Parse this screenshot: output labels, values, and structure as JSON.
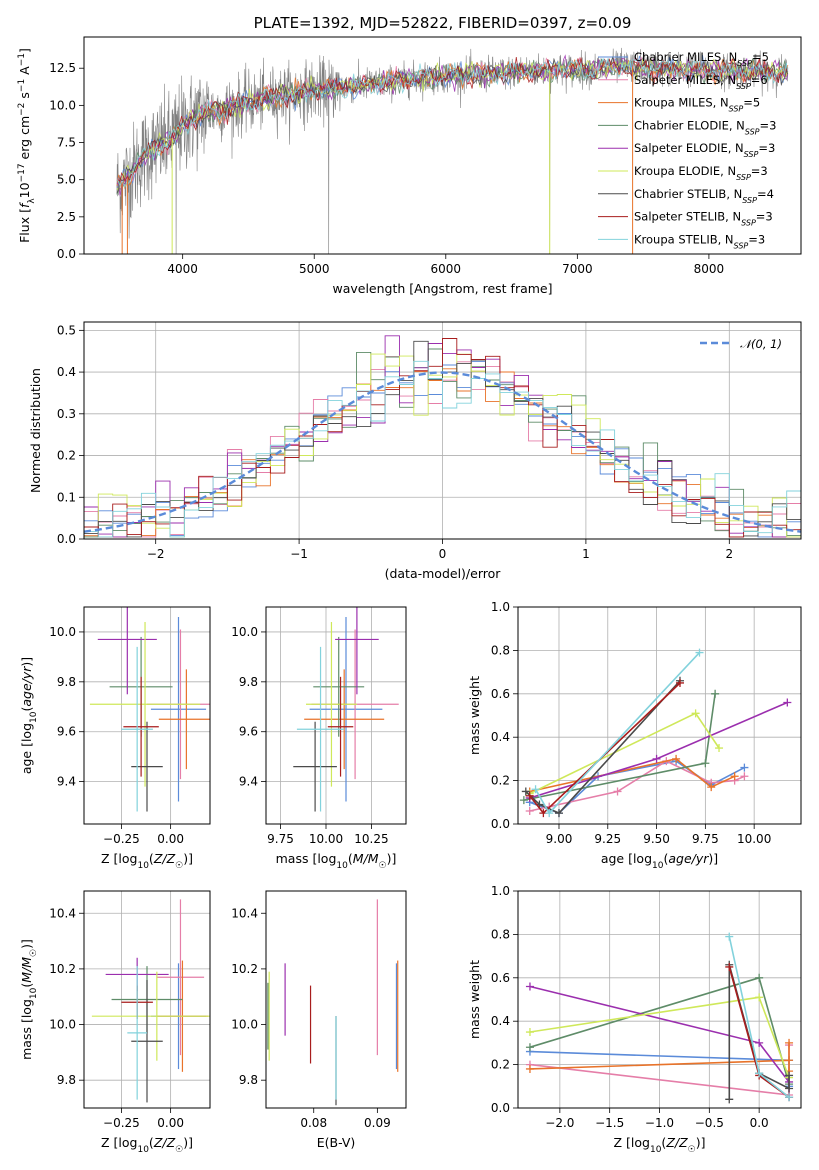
{
  "colors": {
    "Chabrier MILES": "#5b8bd9",
    "Salpeter MILES": "#e57ea8",
    "Kroupa MILES": "#e8732a",
    "Chabrier ELODIE": "#5e8c68",
    "Salpeter ELODIE": "#9b2fae",
    "Kroupa ELODIE": "#cfe85a",
    "Chabrier STELIB": "#4b4b4b",
    "Salpeter STELIB": "#a81d1d",
    "Kroupa STELIB": "#82d2dc"
  },
  "chart_data": [
    {
      "id": "spectrum",
      "type": "line",
      "title": "PLATE=1392, MJD=52822, FIBERID=0397, z=0.09",
      "xlabel": "wavelength [Angstrom, rest frame]",
      "ylabel": "Flux [f_λ10^-17 erg cm^-2 s^-1 A^-1]",
      "xlim": [
        3250,
        8700
      ],
      "ylim": [
        0,
        14.6
      ],
      "xticks": [
        4000,
        5000,
        6000,
        7000,
        8000
      ],
      "yticks": [
        0.0,
        2.5,
        5.0,
        7.5,
        10.0,
        12.5
      ],
      "grid": false,
      "legend_position": "upper-right",
      "data_color": "#808080",
      "continuum": {
        "x": [
          3500,
          3600,
          3700,
          3800,
          3900,
          4000,
          4100,
          4200,
          4300,
          4500,
          4700,
          5000,
          5300,
          5600,
          6000,
          6300,
          6600,
          7000,
          7400,
          7800,
          8200,
          8600
        ],
        "y": [
          4.5,
          5.3,
          6.6,
          7.2,
          7.6,
          8.6,
          9.2,
          9.6,
          9.7,
          10.2,
          10.6,
          11.0,
          11.3,
          11.6,
          12.0,
          12.1,
          12.3,
          12.4,
          12.6,
          12.4,
          12.3,
          12.2
        ]
      },
      "legend": [
        {
          "name": "Chabrier MILES",
          "nssp": 5
        },
        {
          "name": "Salpeter MILES",
          "nssp": 6
        },
        {
          "name": "Kroupa MILES",
          "nssp": 5
        },
        {
          "name": "Chabrier ELODIE",
          "nssp": 3
        },
        {
          "name": "Salpeter ELODIE",
          "nssp": 3
        },
        {
          "name": "Kroupa ELODIE",
          "nssp": 3
        },
        {
          "name": "Chabrier STELIB",
          "nssp": 4
        },
        {
          "name": "Salpeter STELIB",
          "nssp": 3
        },
        {
          "name": "Kroupa STELIB",
          "nssp": 3
        }
      ]
    },
    {
      "id": "residuals",
      "type": "step",
      "xlabel": "(data-model)/error",
      "ylabel": "Normed distribution",
      "xlim": [
        -2.5,
        2.5
      ],
      "ylim": [
        0,
        0.52
      ],
      "xticks": [
        -2,
        -1,
        0,
        1,
        2
      ],
      "yticks": [
        0.0,
        0.1,
        0.2,
        0.3,
        0.4,
        0.5
      ],
      "grid": true,
      "bin_width": 0.1,
      "gaussian_label": "N(0,1)",
      "gaussian_color": "#5b8bd9",
      "legend_position": "upper-right"
    },
    {
      "id": "age-vs-z",
      "type": "errorbar",
      "xlabel": "Z [log10(Z/Z☉)]",
      "ylabel": "age [log10(age/yr)]",
      "xlim": [
        -0.44,
        0.2
      ],
      "ylim": [
        9.23,
        10.1
      ],
      "xticks": [
        -0.25,
        0.0
      ],
      "xtick_labels": [
        "−0.25",
        "0.00"
      ],
      "yticks": [
        9.4,
        9.6,
        9.8,
        10.0
      ],
      "grid": true,
      "points": [
        {
          "series": "Chabrier MILES",
          "x": 0.04,
          "xerr": 0.14,
          "y": 9.69,
          "yerr": 0.37
        },
        {
          "series": "Salpeter MILES",
          "x": 0.05,
          "xerr": 0.17,
          "y": 9.71,
          "yerr": 0.3
        },
        {
          "series": "Kroupa MILES",
          "x": 0.08,
          "xerr": 0.14,
          "y": 9.65,
          "yerr": 0.2
        },
        {
          "series": "Chabrier ELODIE",
          "x": -0.15,
          "xerr": 0.16,
          "y": 9.78,
          "yerr": 0.2
        },
        {
          "series": "Salpeter ELODIE",
          "x": -0.22,
          "xerr": 0.15,
          "y": 9.97,
          "yerr": 0.22
        },
        {
          "series": "Kroupa ELODIE",
          "x": -0.13,
          "xerr": 0.28,
          "y": 9.71,
          "yerr": 0.33
        },
        {
          "series": "Chabrier STELIB",
          "x": -0.12,
          "xerr": 0.08,
          "y": 9.46,
          "yerr": 0.18
        },
        {
          "series": "Salpeter STELIB",
          "x": -0.15,
          "xerr": 0.09,
          "y": 9.62,
          "yerr": 0.2
        },
        {
          "series": "Kroupa STELIB",
          "x": -0.17,
          "xerr": 0.08,
          "y": 9.61,
          "yerr": 0.33
        }
      ]
    },
    {
      "id": "age-vs-mass",
      "type": "errorbar",
      "xlabel": "mass [log10(M/M☉)]",
      "ylabel": "",
      "xlim": [
        9.67,
        10.44
      ],
      "ylim": [
        9.23,
        10.1
      ],
      "xticks": [
        9.75,
        10.0,
        10.25
      ],
      "xtick_labels": [
        "9.75",
        "10.00",
        "10.25"
      ],
      "yticks": [
        9.4,
        9.6,
        9.8,
        10.0
      ],
      "grid": true,
      "points": [
        {
          "series": "Chabrier MILES",
          "x": 10.11,
          "xerr": 0.2,
          "y": 9.69,
          "yerr": 0.37
        },
        {
          "series": "Salpeter MILES",
          "x": 10.16,
          "xerr": 0.24,
          "y": 9.71,
          "yerr": 0.3
        },
        {
          "series": "Kroupa MILES",
          "x": 10.1,
          "xerr": 0.22,
          "y": 9.65,
          "yerr": 0.2
        },
        {
          "series": "Chabrier ELODIE",
          "x": 10.07,
          "xerr": 0.14,
          "y": 9.78,
          "yerr": 0.2
        },
        {
          "series": "Salpeter ELODIE",
          "x": 10.17,
          "xerr": 0.12,
          "y": 9.97,
          "yerr": 0.22
        },
        {
          "series": "Kroupa ELODIE",
          "x": 10.03,
          "xerr": 0.14,
          "y": 9.71,
          "yerr": 0.33
        },
        {
          "series": "Chabrier STELIB",
          "x": 9.94,
          "xerr": 0.12,
          "y": 9.46,
          "yerr": 0.18
        },
        {
          "series": "Salpeter STELIB",
          "x": 10.08,
          "xerr": 0.07,
          "y": 9.62,
          "yerr": 0.2
        },
        {
          "series": "Kroupa STELIB",
          "x": 9.97,
          "xerr": 0.13,
          "y": 9.61,
          "yerr": 0.33
        }
      ]
    },
    {
      "id": "weight-vs-age",
      "type": "line",
      "xlabel": "age [log10(age/yr)]",
      "ylabel": "mass weight",
      "xlim": [
        8.79,
        10.24
      ],
      "ylim": [
        0,
        1.0
      ],
      "xticks": [
        9.0,
        9.25,
        9.5,
        9.75,
        10.0
      ],
      "xtick_labels": [
        "9.00",
        "9.25",
        "9.50",
        "9.75",
        "10.00"
      ],
      "yticks": [
        0.0,
        0.2,
        0.4,
        0.6,
        0.8,
        1.0
      ],
      "grid": true,
      "series": [
        {
          "name": "Chabrier MILES",
          "x": [
            8.85,
            9.0,
            9.2,
            9.6,
            9.78,
            9.95
          ],
          "y": [
            0.1,
            0.05,
            0.22,
            0.29,
            0.18,
            0.26
          ]
        },
        {
          "name": "Salpeter MILES",
          "x": [
            8.85,
            8.95,
            9.3,
            9.55,
            9.78,
            9.9,
            9.95
          ],
          "y": [
            0.06,
            0.08,
            0.15,
            0.29,
            0.19,
            0.2,
            0.22
          ]
        },
        {
          "name": "Kroupa MILES",
          "x": [
            8.85,
            9.6,
            9.78,
            9.9
          ],
          "y": [
            0.15,
            0.3,
            0.17,
            0.22
          ]
        },
        {
          "name": "Chabrier ELODIE",
          "x": [
            8.82,
            9.75,
            9.8
          ],
          "y": [
            0.11,
            0.28,
            0.6
          ]
        },
        {
          "name": "Salpeter ELODIE",
          "x": [
            8.85,
            9.5,
            10.17
          ],
          "y": [
            0.12,
            0.3,
            0.56
          ]
        },
        {
          "name": "Kroupa ELODIE",
          "x": [
            8.85,
            9.7,
            9.82
          ],
          "y": [
            0.14,
            0.51,
            0.35
          ]
        },
        {
          "name": "Chabrier STELIB",
          "x": [
            8.83,
            8.9,
            9.0,
            9.62
          ],
          "y": [
            0.15,
            0.09,
            0.05,
            0.66
          ]
        },
        {
          "name": "Salpeter STELIB",
          "x": [
            8.85,
            8.92,
            9.62
          ],
          "y": [
            0.13,
            0.05,
            0.65
          ]
        },
        {
          "name": "Kroupa STELIB",
          "x": [
            8.88,
            8.95,
            9.72
          ],
          "y": [
            0.16,
            0.05,
            0.79
          ]
        }
      ]
    },
    {
      "id": "mass-vs-z",
      "type": "errorbar",
      "xlabel": "Z [log10(Z/Z☉)]",
      "ylabel": "mass [log10(M/M☉)]",
      "xlim": [
        -0.44,
        0.2
      ],
      "ylim": [
        9.7,
        10.48
      ],
      "xticks": [
        -0.25,
        0.0
      ],
      "xtick_labels": [
        "−0.25",
        "0.00"
      ],
      "yticks": [
        9.8,
        10.0,
        10.2,
        10.4
      ],
      "grid": true,
      "points": [
        {
          "series": "Chabrier MILES",
          "x": 0.04,
          "xerr": 0.14,
          "y": 10.03,
          "yerr": 0.19
        },
        {
          "series": "Salpeter MILES",
          "x": 0.05,
          "xerr": 0.12,
          "y": 10.17,
          "yerr": 0.28
        },
        {
          "series": "Kroupa MILES",
          "x": 0.06,
          "xerr": 0.13,
          "y": 10.03,
          "yerr": 0.2
        },
        {
          "series": "Chabrier ELODIE",
          "x": -0.12,
          "xerr": 0.18,
          "y": 10.09,
          "yerr": 0.12
        },
        {
          "series": "Salpeter ELODIE",
          "x": -0.17,
          "xerr": 0.16,
          "y": 10.18,
          "yerr": 0.06
        },
        {
          "series": "Kroupa ELODIE",
          "x": -0.07,
          "xerr": 0.33,
          "y": 10.03,
          "yerr": 0.16
        },
        {
          "series": "Chabrier STELIB",
          "x": -0.12,
          "xerr": 0.08,
          "y": 9.94,
          "yerr": 0.22
        },
        {
          "series": "Salpeter STELIB",
          "x": -0.17,
          "xerr": 0.08,
          "y": 10.08,
          "yerr": 0.06
        },
        {
          "series": "Kroupa STELIB",
          "x": -0.17,
          "xerr": 0.05,
          "y": 9.97,
          "yerr": 0.24
        }
      ]
    },
    {
      "id": "mass-vs-ebv",
      "type": "errorbar",
      "xlabel": "E(B-V)",
      "ylabel": "",
      "xlim": [
        0.0725,
        0.0945
      ],
      "ylim": [
        9.7,
        10.48
      ],
      "xticks": [
        0.08,
        0.09
      ],
      "xtick_labels": [
        "0.08",
        "0.09"
      ],
      "yticks": [
        9.8,
        10.0,
        10.2,
        10.4
      ],
      "grid": false,
      "points": [
        {
          "series": "Chabrier MILES",
          "x": 0.093,
          "xerr": 0,
          "y": 10.03,
          "yerr": 0.19
        },
        {
          "series": "Salpeter MILES",
          "x": 0.09,
          "xerr": 0,
          "y": 10.17,
          "yerr": 0.28
        },
        {
          "series": "Kroupa MILES",
          "x": 0.0932,
          "xerr": 0,
          "y": 10.03,
          "yerr": 0.2
        },
        {
          "series": "Chabrier ELODIE",
          "x": 0.0728,
          "xerr": 0,
          "y": 10.03,
          "yerr": 0.12
        },
        {
          "series": "Salpeter ELODIE",
          "x": 0.0755,
          "xerr": 0,
          "y": 10.09,
          "yerr": 0.13
        },
        {
          "series": "Kroupa ELODIE",
          "x": 0.073,
          "xerr": 0,
          "y": 10.03,
          "yerr": 0.16
        },
        {
          "series": "Chabrier STELIB",
          "x": 0.0835,
          "xerr": 0,
          "y": 9.87,
          "yerr": 0.16
        },
        {
          "series": "Salpeter STELIB",
          "x": 0.0795,
          "xerr": 0,
          "y": 10.0,
          "yerr": 0.14
        },
        {
          "series": "Kroupa STELIB",
          "x": 0.0835,
          "xerr": 0,
          "y": 9.88,
          "yerr": 0.15
        }
      ]
    },
    {
      "id": "weight-vs-z",
      "type": "line",
      "xlabel": "Z [log10(Z/Z☉)]",
      "ylabel": "mass weight",
      "xlim": [
        -2.42,
        0.42
      ],
      "ylim": [
        0,
        1.0
      ],
      "xticks": [
        -2.0,
        -1.5,
        -1.0,
        -0.5,
        0.0
      ],
      "xtick_labels": [
        "−2.0",
        "−1.5",
        "−1.0",
        "−0.5",
        "0.0"
      ],
      "yticks": [
        0.0,
        0.2,
        0.4,
        0.6,
        0.8,
        1.0
      ],
      "grid": true,
      "series": [
        {
          "name": "Chabrier MILES",
          "x": [
            -2.3,
            0.3,
            0.3,
            0.3
          ],
          "y": [
            0.26,
            0.22,
            0.05,
            0.1
          ]
        },
        {
          "name": "Salpeter MILES",
          "x": [
            -2.3,
            0.3,
            0.3
          ],
          "y": [
            0.2,
            0.06,
            0.29
          ]
        },
        {
          "name": "Kroupa MILES",
          "x": [
            -2.3,
            0.3,
            0.3,
            0.3
          ],
          "y": [
            0.18,
            0.22,
            0.3,
            0.17
          ]
        },
        {
          "name": "Chabrier ELODIE",
          "x": [
            -2.3,
            0.0,
            0.3
          ],
          "y": [
            0.28,
            0.6,
            0.11
          ]
        },
        {
          "name": "Salpeter ELODIE",
          "x": [
            -2.3,
            0.0,
            0.3
          ],
          "y": [
            0.56,
            0.3,
            0.12
          ]
        },
        {
          "name": "Kroupa ELODIE",
          "x": [
            -2.3,
            0.0,
            0.3
          ],
          "y": [
            0.35,
            0.51,
            0.14
          ]
        },
        {
          "name": "Chabrier STELIB",
          "x": [
            -0.3,
            -0.3,
            0.0,
            0.3,
            0.3
          ],
          "y": [
            0.04,
            0.66,
            0.16,
            0.09,
            0.15
          ]
        },
        {
          "name": "Salpeter STELIB",
          "x": [
            -0.3,
            0.0,
            0.3
          ],
          "y": [
            0.65,
            0.15,
            0.05
          ]
        },
        {
          "name": "Kroupa STELIB",
          "x": [
            -0.3,
            0.0,
            0.3
          ],
          "y": [
            0.79,
            0.16,
            0.05
          ]
        }
      ]
    }
  ]
}
